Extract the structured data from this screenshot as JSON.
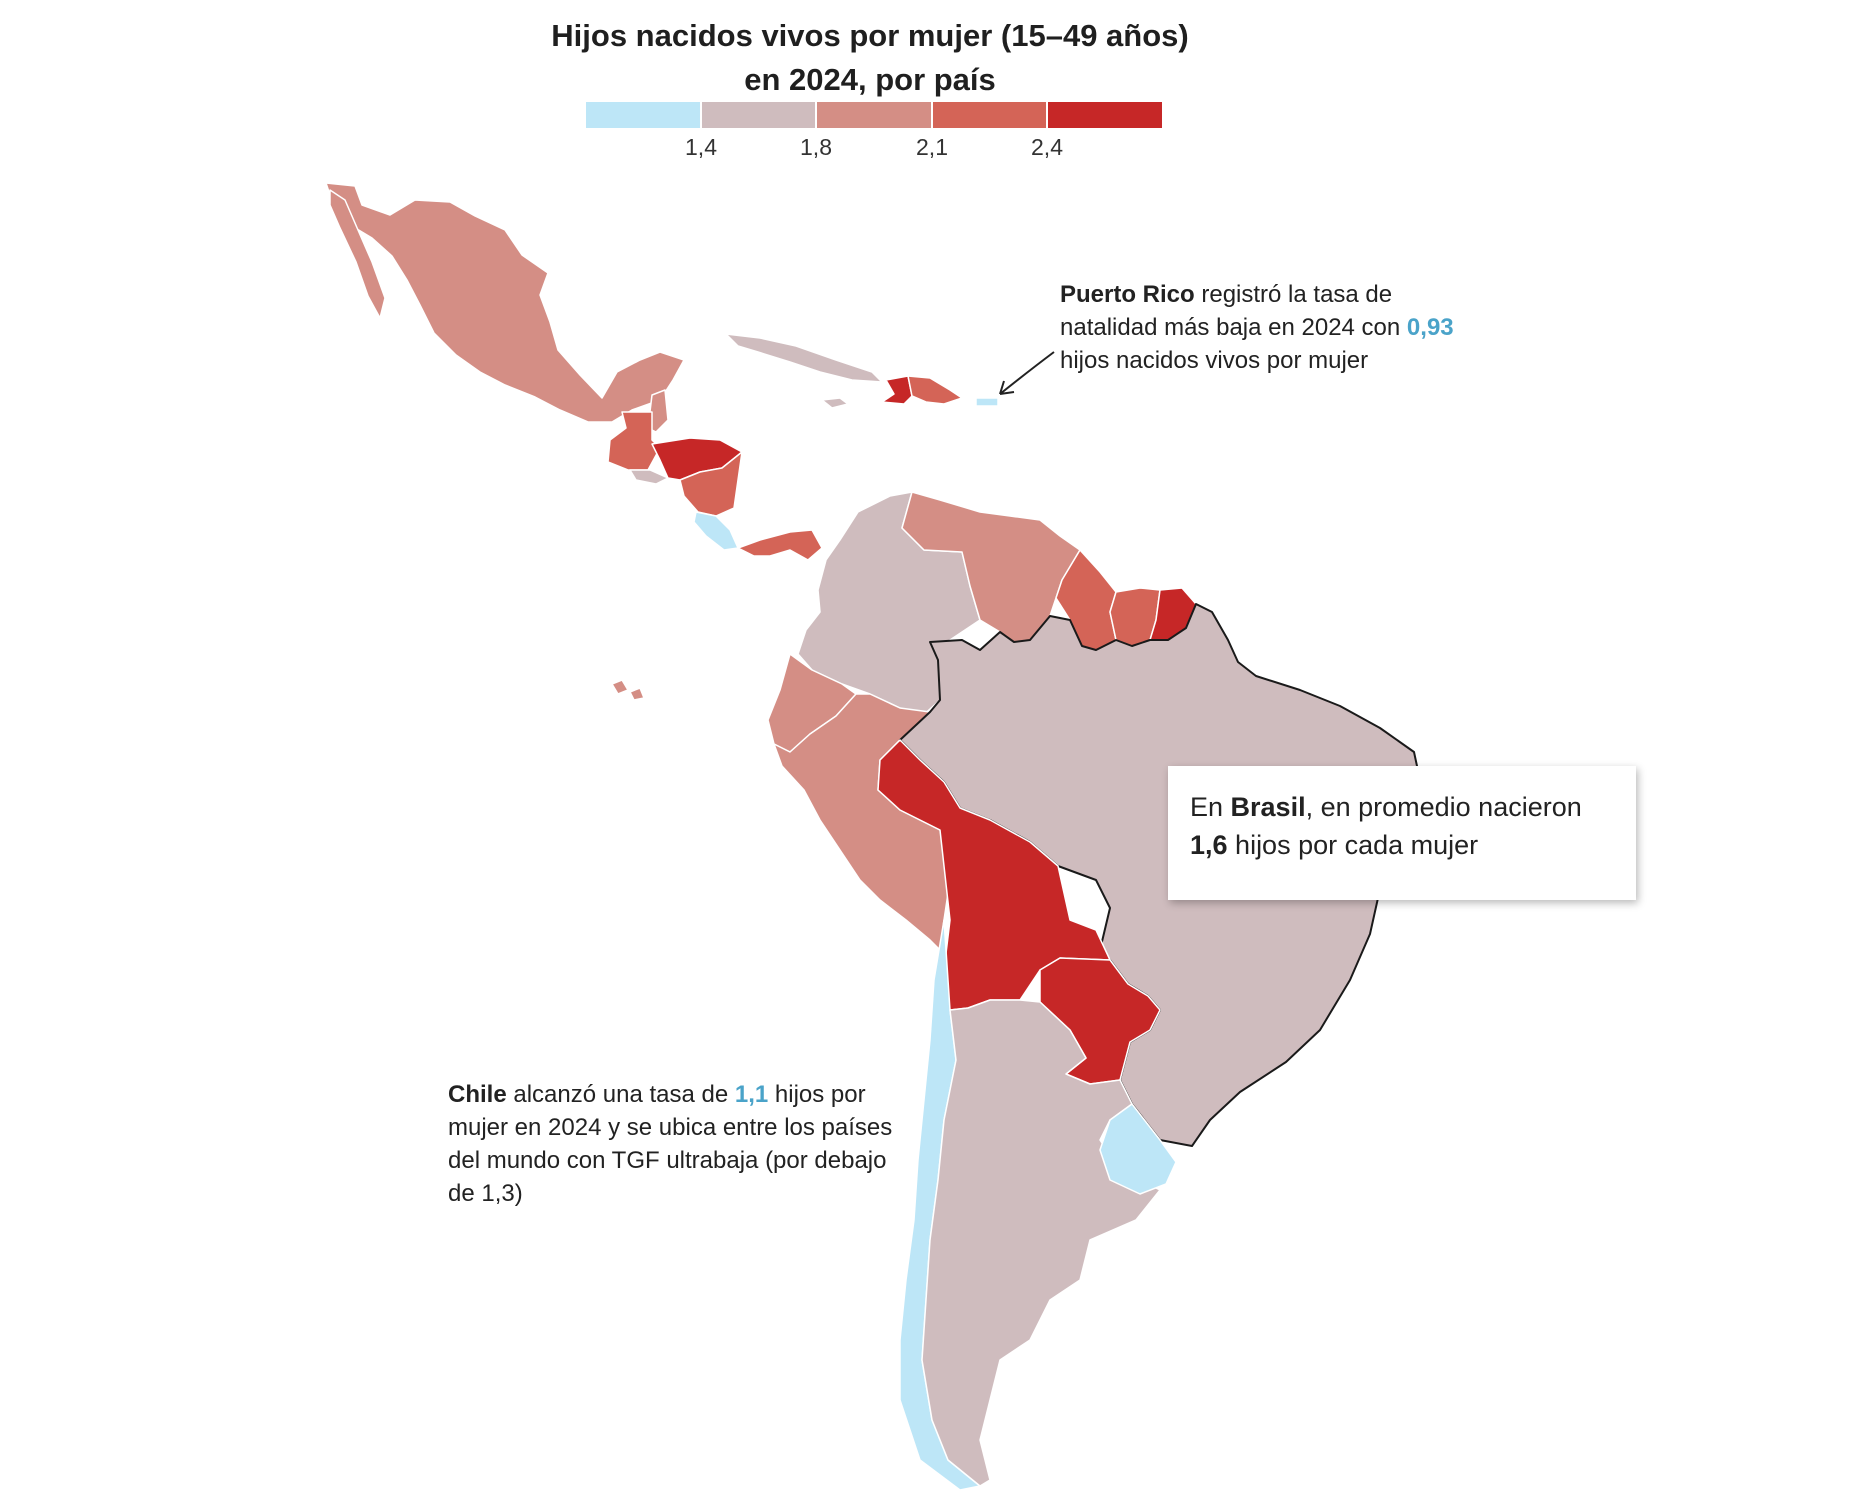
{
  "title": {
    "line1": "Hijos nacidos vivos por mujer (15–49 años)",
    "line2": "en 2024, por país"
  },
  "legend": {
    "colors": [
      "#bde6f7",
      "#cfbcbe",
      "#d48e85",
      "#d46457",
      "#c62727"
    ],
    "ticks": [
      "1,4",
      "1,8",
      "2,1",
      "2,4"
    ]
  },
  "annotations": {
    "puerto_rico": {
      "bold": "Puerto Rico",
      "text1": " registró la tasa de",
      "text2": "natalidad más baja en 2024 con ",
      "value": "0,93",
      "text3": "hijos nacidos vivos por mujer"
    },
    "brasil": {
      "text1": "En ",
      "bold": "Brasil",
      "text2": ", en promedio nacieron",
      "value": "1,6",
      "text3": " hijos por cada mujer"
    },
    "chile": {
      "bold": "Chile",
      "text1": " alcanzó una tasa de ",
      "value": "1,1",
      "text2": " hijos por",
      "text3": "mujer en 2024 y se ubica entre los países",
      "text4": "del mundo con TGF ultrabaja (por debajo",
      "text5": "de 1,3)"
    }
  },
  "countries": [
    {
      "name": "México",
      "class": 2
    },
    {
      "name": "Guatemala",
      "class": 3
    },
    {
      "name": "Belice",
      "class": 2
    },
    {
      "name": "El Salvador",
      "class": 1
    },
    {
      "name": "Honduras",
      "class": 4
    },
    {
      "name": "Nicaragua",
      "class": 3
    },
    {
      "name": "Costa Rica",
      "class": 0
    },
    {
      "name": "Panamá",
      "class": 3
    },
    {
      "name": "Cuba",
      "class": 1
    },
    {
      "name": "Haití",
      "class": 4
    },
    {
      "name": "República Dominicana",
      "class": 3
    },
    {
      "name": "Puerto Rico",
      "class": 0
    },
    {
      "name": "Jamaica",
      "class": 1
    },
    {
      "name": "Colombia",
      "class": 1
    },
    {
      "name": "Venezuela",
      "class": 2
    },
    {
      "name": "Guyana",
      "class": 3
    },
    {
      "name": "Surinam",
      "class": 3
    },
    {
      "name": "Guayana Francesa",
      "class": 4
    },
    {
      "name": "Ecuador",
      "class": 2
    },
    {
      "name": "Perú",
      "class": 2
    },
    {
      "name": "Brasil",
      "class": 1
    },
    {
      "name": "Bolivia",
      "class": 4
    },
    {
      "name": "Paraguay",
      "class": 4
    },
    {
      "name": "Chile",
      "class": 0
    },
    {
      "name": "Argentina",
      "class": 1
    },
    {
      "name": "Uruguay",
      "class": 0
    },
    {
      "name": "Islas Galápagos",
      "class": 2
    }
  ]
}
